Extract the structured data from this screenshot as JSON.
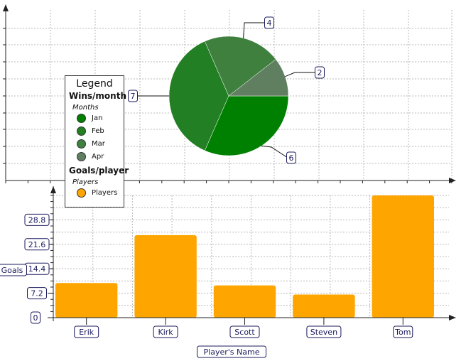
{
  "chart_data": [
    {
      "type": "pie",
      "series_title": "Wins/month",
      "legend_subtitle": "Months",
      "slices": [
        {
          "label": "Jan",
          "value": 6,
          "color": "#008000"
        },
        {
          "label": "Feb",
          "value": 7,
          "color": "#237f23"
        },
        {
          "label": "Mar",
          "value": 4,
          "color": "#3f803f"
        },
        {
          "label": "Apr",
          "value": 2,
          "color": "#607f60"
        }
      ],
      "value_labels": [
        "6",
        "7",
        "4",
        "2"
      ]
    },
    {
      "type": "bar",
      "series_title": "Goals/player",
      "legend_subtitle": "Players",
      "series": [
        {
          "name": "Players",
          "color": "#ffa500"
        }
      ],
      "categories": [
        "Erik",
        "Kirk",
        "Scott",
        "Steven",
        "Tom"
      ],
      "values": [
        10.2,
        24.3,
        9.5,
        6.8,
        36.0
      ],
      "xlabel": "Player's Name",
      "ylabel": "Goals",
      "ylim": [
        0,
        36
      ],
      "yticks": [
        "0",
        "7.2",
        "14.4",
        "21.6",
        "28.8"
      ],
      "grid": true,
      "legend_position": "left"
    }
  ],
  "legend": {
    "title": "Legend",
    "pie_title": "Wins/month",
    "pie_subtitle": "Months",
    "pie_items": [
      "Jan",
      "Feb",
      "Mar",
      "Apr"
    ],
    "bar_title": "Goals/player",
    "bar_subtitle": "Players",
    "bar_items": [
      "Players"
    ]
  }
}
